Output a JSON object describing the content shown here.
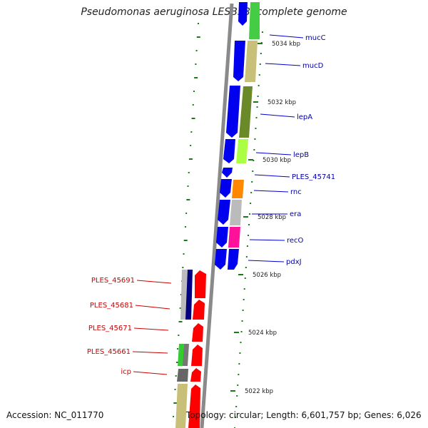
{
  "title": "Pseudomonas aeruginosa LESB58, complete genome",
  "accession": "Accession: NC_011770",
  "summary": "Topology: circular; Length: 6,601,757 bp; Genes: 6,026",
  "colors": {
    "backbone": "#8a8a8a",
    "forward_gene": "#0000ee",
    "label_forward": "#0000aa",
    "label_reverse": "#cc0000",
    "reverse_gene": "#ff0000",
    "tick": "#1a7a1a"
  },
  "ruler": {
    "unit": "kbp",
    "labels": [
      "5034 kbp",
      "5032 kbp",
      "5030 kbp",
      "5028 kbp",
      "5026 kbp",
      "5024 kbp",
      "5022 kbp"
    ]
  },
  "genes_forward_labels": [
    "mucC",
    "mucD",
    "lepA",
    "lepB",
    "PLES_45741",
    "rnc",
    "era",
    "recO",
    "pdxJ"
  ],
  "genes_reverse_labels": [
    "PLES_45691",
    "PLES_45681",
    "PLES_45671",
    "PLES_45661",
    "icp"
  ],
  "cog_colors": {
    "green": "#44cc44",
    "khaki": "#c8c078",
    "olive": "#6a8a2a",
    "lime": "#aaff44",
    "orange": "#ff8800",
    "grey": "#bbbbbb",
    "magenta": "#ff1199",
    "navy": "#000080",
    "dark_grey": "#666666",
    "light_green": "#33cc33"
  }
}
